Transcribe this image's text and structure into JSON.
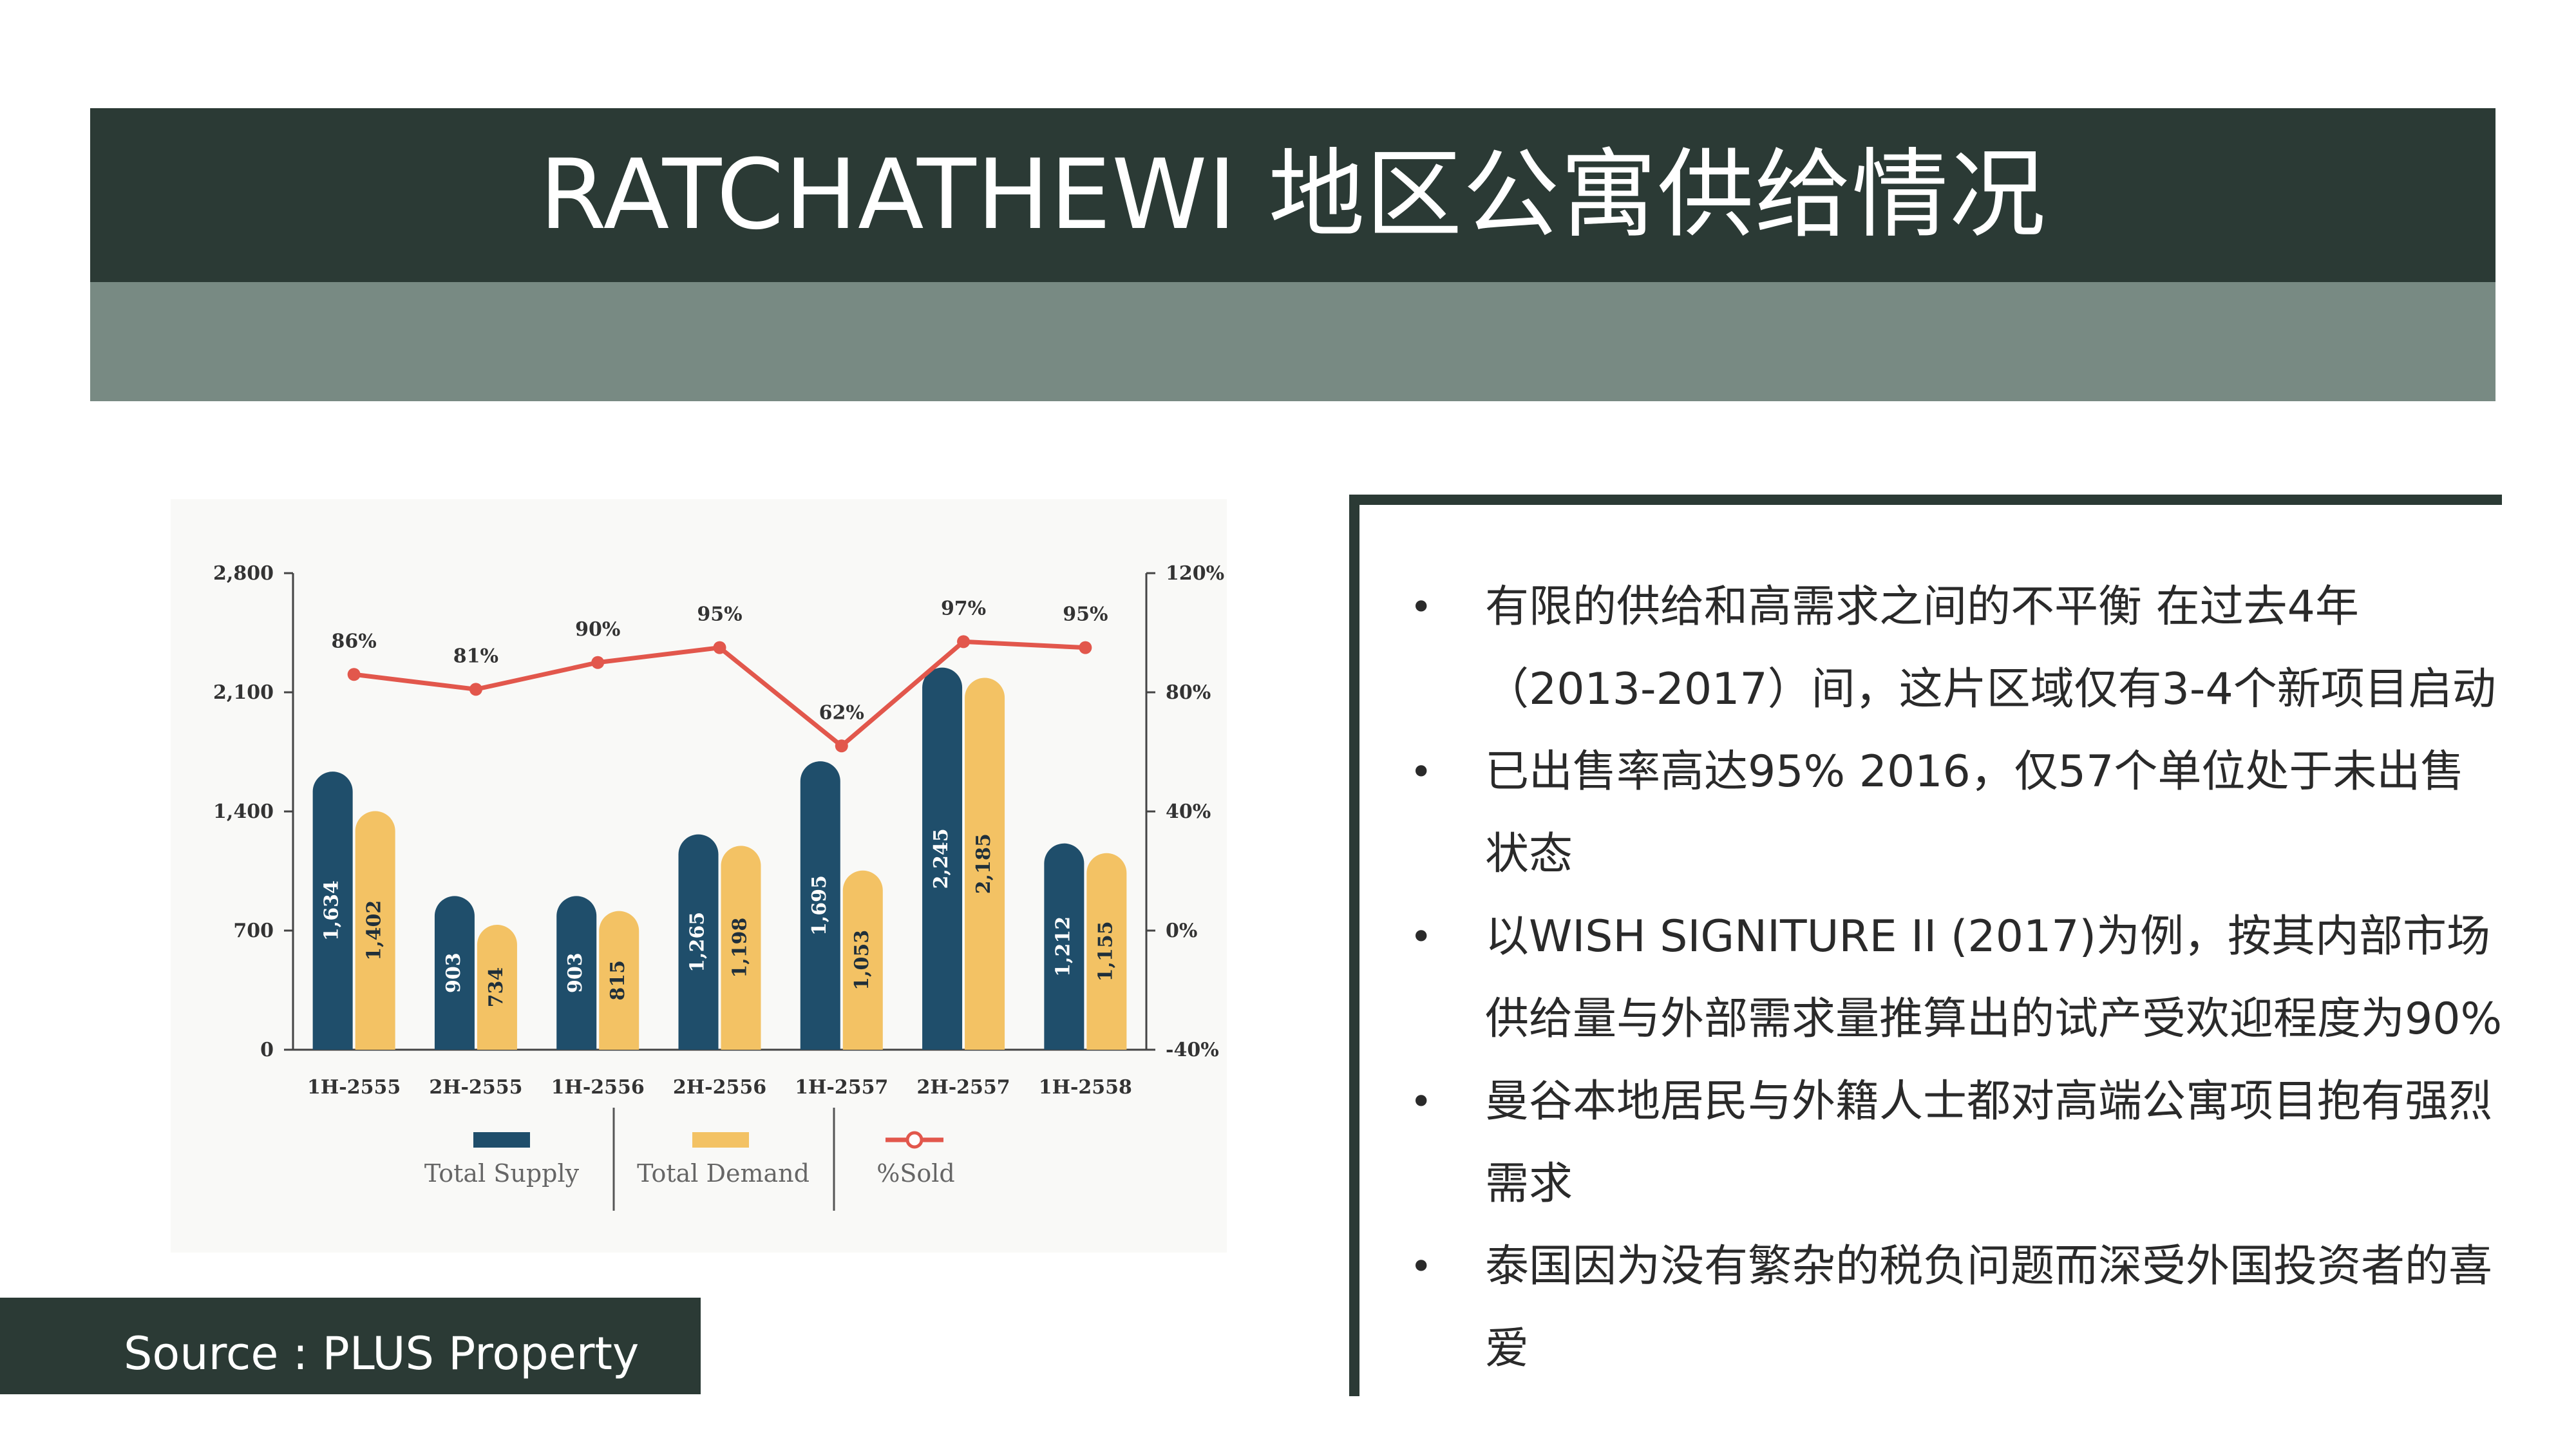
{
  "slide": {
    "title": "RATCHATHEWI 地区公寓供给情况",
    "source": "Source : PLUS Property"
  },
  "colors": {
    "header_dark": "#2b3a35",
    "header_band": "#788a83",
    "supply": "#1f4e6b",
    "demand": "#f3c264",
    "sold_line": "#e2574c"
  },
  "bullets": [
    "有限的供给和高需求之间的不平衡 在过去4年（2013-2017）间，这片区域仅有3-4个新项目启动",
    "已出售率高达95% 2016，仅57个单位处于未出售状态",
    "以WISH SIGNITURE II (2017)为例，按其内部市场供给量与外部需求量推算出的试产受欢迎程度为90%",
    "曼谷本地居民与外籍人士都对高端公寓项目抱有强烈需求",
    "泰国因为没有繁杂的税负问题而深受外国投资者的喜爱"
  ],
  "chart_data": {
    "type": "bar",
    "categories": [
      "1H-2555",
      "2H-2555",
      "1H-2556",
      "2H-2556",
      "1H-2557",
      "2H-2557",
      "1H-2558"
    ],
    "series": [
      {
        "name": "Total Supply",
        "type": "bar",
        "axis": "left",
        "values": [
          1634,
          903,
          903,
          1265,
          1695,
          2245,
          1212
        ],
        "labels": [
          "1,634",
          "903",
          "903",
          "1,265",
          "1,695",
          "2,245",
          "1,212"
        ]
      },
      {
        "name": "Total Demand",
        "type": "bar",
        "axis": "left",
        "values": [
          1402,
          734,
          815,
          1198,
          1053,
          2185,
          1155
        ],
        "labels": [
          "1,402",
          "734",
          "815",
          "1,198",
          "1,053",
          "2,185",
          "1,155"
        ]
      },
      {
        "name": "%Sold",
        "type": "line",
        "axis": "right",
        "values": [
          86,
          81,
          90,
          95,
          62,
          97,
          95
        ],
        "labels": [
          "86%",
          "81%",
          "90%",
          "95%",
          "62%",
          "97%",
          "95%"
        ]
      }
    ],
    "y_left": {
      "ylim": [
        0,
        2800
      ],
      "ticks": [
        0,
        700,
        1400,
        2100,
        2800
      ],
      "tick_labels": [
        "0",
        "700",
        "1,400",
        "2,100",
        "2,800"
      ]
    },
    "y_right": {
      "ylim": [
        -40,
        120
      ],
      "ticks": [
        -40,
        0,
        40,
        80,
        120
      ],
      "tick_labels": [
        "-40%",
        "0%",
        "40%",
        "80%",
        "120%"
      ]
    },
    "legend_placement": "bottom",
    "grid": false
  }
}
